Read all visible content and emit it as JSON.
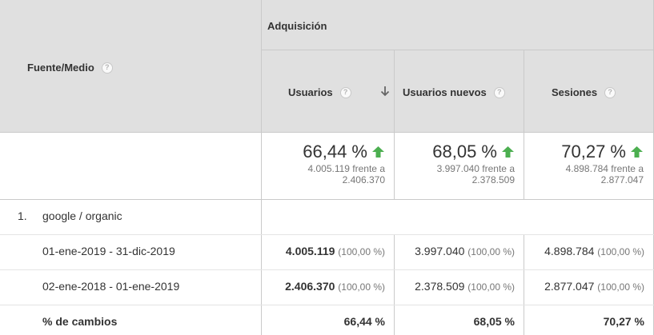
{
  "table": {
    "dimension_header": "Fuente/Medio",
    "group_header": "Adquisición",
    "columns": [
      {
        "label": "Usuarios",
        "sorted": true
      },
      {
        "label": "Usuarios nuevos",
        "sorted": false
      },
      {
        "label": "Sesiones",
        "sorted": false
      }
    ],
    "summary": [
      {
        "pct": "66,44 %",
        "compare": "4.005.119 frente a",
        "compare2": "2.406.370",
        "direction": "up"
      },
      {
        "pct": "68,05 %",
        "compare": "3.997.040 frente a",
        "compare2": "2.378.509",
        "direction": "up"
      },
      {
        "pct": "70,27 %",
        "compare": "4.898.784 frente a",
        "compare2": "2.877.047",
        "direction": "up"
      }
    ],
    "group_row": {
      "index": "1.",
      "label": "google / organic"
    },
    "date_rows": [
      {
        "label": "01-ene-2019 - 31-dic-2019",
        "values": [
          {
            "value": "4.005.119",
            "share": "(100,00 %)"
          },
          {
            "value": "3.997.040",
            "share": "(100,00 %)"
          },
          {
            "value": "4.898.784",
            "share": "(100,00 %)"
          }
        ]
      },
      {
        "label": "02-ene-2018 - 01-ene-2019",
        "values": [
          {
            "value": "2.406.370",
            "share": "(100,00 %)"
          },
          {
            "value": "2.378.509",
            "share": "(100,00 %)"
          },
          {
            "value": "2.877.047",
            "share": "(100,00 %)"
          }
        ]
      }
    ],
    "change_row": {
      "label": "% de cambios",
      "values": [
        "66,44 %",
        "68,05 %",
        "70,27 %"
      ]
    },
    "help_icon_text": "?",
    "colors": {
      "header_bg": "#e0e0e0",
      "up_arrow": "#4caf50",
      "border": "#cacaca"
    }
  }
}
